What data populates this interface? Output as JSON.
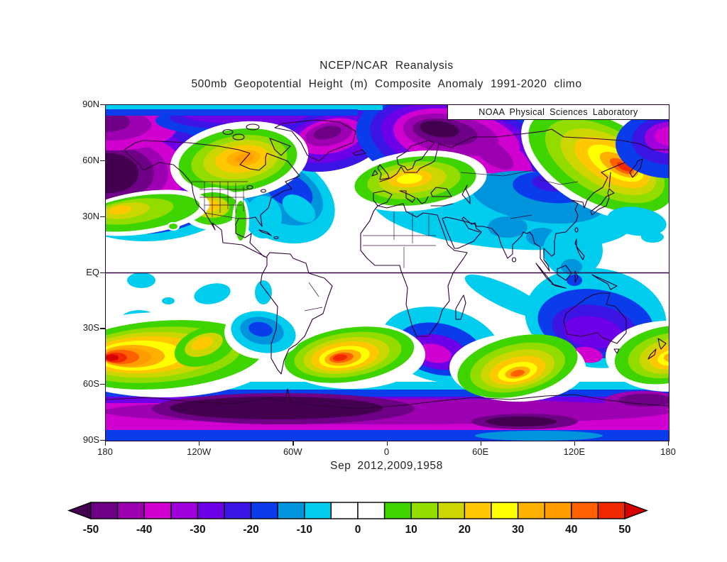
{
  "header": {
    "title": "NCEP/NCAR Reanalysis",
    "subtitle": "500mb Geopotential Height (m) Composite Anomaly 1991-2020 climo"
  },
  "map": {
    "source_label": "NOAA Physical Sciences Laboratory",
    "caption": "Sep 2012,2009,1958"
  },
  "chart_data": {
    "type": "heatmap",
    "subtype": "filled-contour world map, equirectangular projection",
    "title": "NCEP/NCAR Reanalysis",
    "subtitle": "500mb Geopotential Height (m) Composite Anomaly 1991-2020 climo",
    "caption": "Sep 2012,2009,1958",
    "units": "m",
    "lat_range": [
      "90N",
      "90S"
    ],
    "lon_range": [
      "180W",
      "180E"
    ],
    "lat_ticks": [
      "90N",
      "60N",
      "30N",
      "EQ",
      "30S",
      "60S",
      "90S"
    ],
    "lon_ticks": [
      "180",
      "120W",
      "60W",
      "0",
      "60E",
      "120E",
      "180"
    ],
    "colorbar": {
      "tick_labels": [
        "-50",
        "-40",
        "-30",
        "-20",
        "-10",
        "0",
        "10",
        "20",
        "30",
        "40",
        "50"
      ],
      "levels": [
        -50,
        -45,
        -40,
        -35,
        -30,
        -25,
        -20,
        -15,
        -10,
        -5,
        0,
        5,
        10,
        15,
        20,
        25,
        30,
        35,
        40,
        45,
        50
      ],
      "cell_colors": [
        "#6D0084",
        "#9C00B0",
        "#D000D0",
        "#A000DC",
        "#6E00E8",
        "#3C14E4",
        "#0A3CEC",
        "#0094DC",
        "#00CCEE",
        "#FFFFFF",
        "#FFFFFF",
        "#3ED400",
        "#92DC00",
        "#CCD600",
        "#FFC800",
        "#FFFF00",
        "#FFB000",
        "#FF9C00",
        "#FF6000",
        "#F22800"
      ],
      "under_arrow_color": "#43004F",
      "over_arrow_color": "#D60000"
    },
    "colors": {
      "coastline": "#2D0033",
      "equator_line": "#3A0045",
      "background": "#FFFFFF"
    },
    "anomaly_centers": [
      {
        "region": "Bering Sea / Gulf of Alaska",
        "lat": "60N",
        "lon": "170W",
        "value": -50
      },
      {
        "region": "central Canada ridge",
        "lat": "62N",
        "lon": "95W",
        "value": 35
      },
      {
        "region": "southwestern United States",
        "lat": "38N",
        "lon": "112W",
        "value": 22
      },
      {
        "region": "eastern North America / NW Atlantic trough",
        "lat": "48N",
        "lon": "65W",
        "value": -20
      },
      {
        "region": "Greenland",
        "lat": "74N",
        "lon": "40W",
        "value": -42
      },
      {
        "region": "central / eastern Europe ridge",
        "lat": "50N",
        "lon": "20E",
        "value": 25
      },
      {
        "region": "Barents Sea / Scandinavia trough",
        "lat": "73N",
        "lon": "40E",
        "value": -52
      },
      {
        "region": "Mongolia / northern China trough",
        "lat": "45N",
        "lon": "105E",
        "value": -22
      },
      {
        "region": "northeast Asia / Sea of Okhotsk ridge",
        "lat": "55N",
        "lon": "140E",
        "value": 48
      },
      {
        "region": "subtropical NE Pacific ridge",
        "lat": "33N",
        "lon": "150W",
        "value": 20
      },
      {
        "region": "South Pacific ridge",
        "lat": "50S",
        "lon": "170W",
        "value": 52
      },
      {
        "region": "trough west of Chile",
        "lat": "32S",
        "lon": "80W",
        "value": -20
      },
      {
        "region": "South Atlantic ridge",
        "lat": "46S",
        "lon": "28W",
        "value": 48
      },
      {
        "region": "trough south of Africa",
        "lat": "44S",
        "lon": "32E",
        "value": -38
      },
      {
        "region": "south Indian Ocean ridge",
        "lat": "52S",
        "lon": "85E",
        "value": 42
      },
      {
        "region": "Australia trough",
        "lat": "35S",
        "lon": "130E",
        "value": -38
      },
      {
        "region": "New Zealand ridge",
        "lat": "46S",
        "lon": "175E",
        "value": 42
      },
      {
        "region": "Antarctic circumpolar low",
        "lat": "72S",
        "lon": "100W",
        "value": -55
      }
    ]
  }
}
